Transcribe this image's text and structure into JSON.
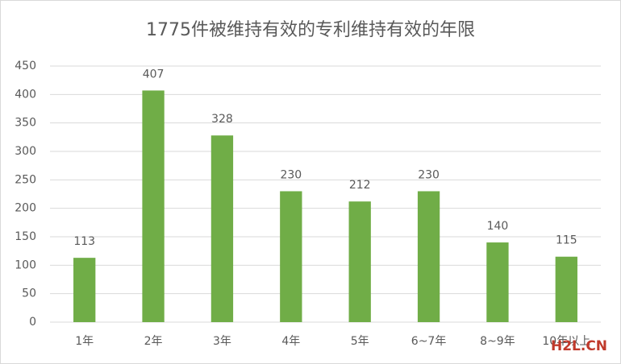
{
  "chart_data": {
    "type": "bar",
    "title": "1775件被维持有效的专利维持有效的年限",
    "categories": [
      "1年",
      "2年",
      "3年",
      "4年",
      "5年",
      "6~7年",
      "8~9年",
      "10年以上"
    ],
    "values": [
      113,
      407,
      328,
      230,
      212,
      230,
      140,
      115
    ],
    "color": "#70ad47",
    "ylim": [
      0,
      450
    ],
    "yticks": [
      0,
      50,
      100,
      150,
      200,
      250,
      300,
      350,
      400,
      450
    ],
    "grid": true
  },
  "watermark": "H2L.CN"
}
